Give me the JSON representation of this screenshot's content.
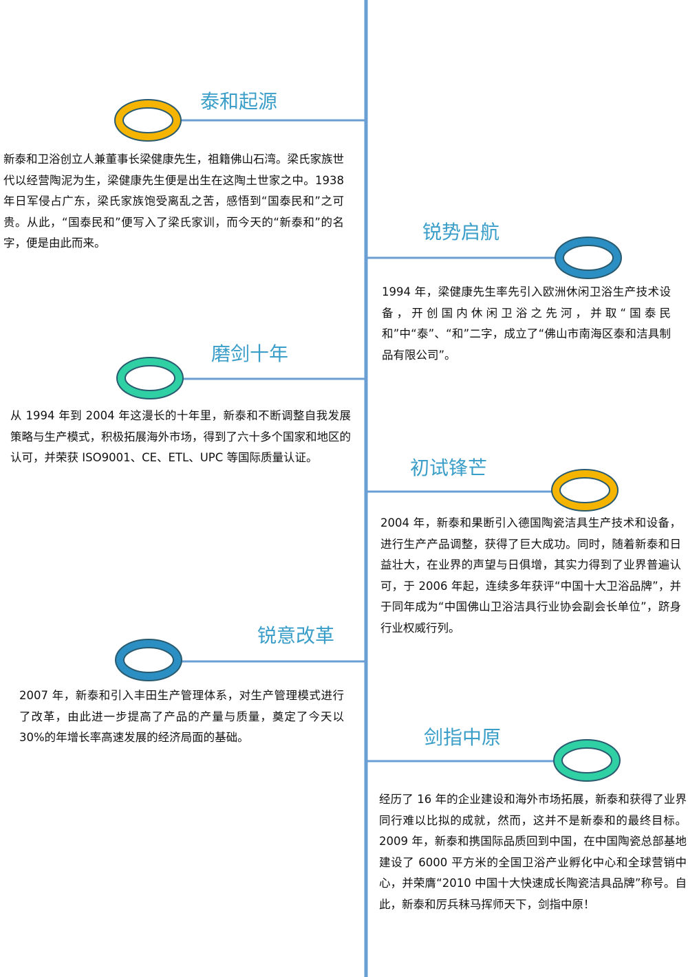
{
  "entries": [
    {
      "title": "泰和起源",
      "text": "新泰和卫浴创立人兼董事长梁健康先生，祖籍佛山石湾。梁氏家族世代以经营陶泥为生，梁健康先生便是出生在这陶土世家之中。1938 年日军侵占广东，梁氏家族饱受离乱之苦，感悟到“国泰民和”之可贵。从此，“国泰民和”便写入了梁氏家训，而今天的“新泰和”的名字，便是由此而来。"
    },
    {
      "title": "锐势启航",
      "text": "1994 年，梁健康先生率先引入欧洲休闲卫浴生产技术设备，开创国内休闲卫浴之先河，并取“国泰民和”中“泰”、“和”二字，成立了“佛山市南海区泰和洁具制品有限公司”。"
    },
    {
      "title": "磨剑十年",
      "text": "从 1994 年到 2004 年这漫长的十年里，新泰和不断调整自我发展策略与生产模式，积极拓展海外市场，得到了六十多个国家和地区的认可，并荣获 ISO9001、CE、ETL、UPC 等国际质量认证。"
    },
    {
      "title": "初试锋芒",
      "text": "2004 年，新泰和果断引入德国陶瓷洁具生产技术和设备，进行生产产品调整，获得了巨大成功。同时，随着新泰和日益壮大，在业界的声望与日俱增，其实力得到了业界普遍认可，于 2006 年起，连续多年获评“中国十大卫浴品牌”，并于同年成为“中国佛山卫浴洁具行业协会副会长单位”，跻身行业权威行列。"
    },
    {
      "title": "锐意改革",
      "text": "2007 年，新泰和引入丰田生产管理体系，对生产管理模式进行了改革，由此进一步提高了产品的产量与质量，奠定了今天以 30%的年增长率高速发展的经济局面的基础。"
    },
    {
      "title": "剑指中原",
      "text": "经历了 16 年的企业建设和海外市场拓展，新泰和获得了业界同行难以比拟的成就，然而，这并不是新泰和的最终目标。2009 年，新泰和携国际品质回到中国，在中国陶瓷总部基地建设了 6000 平方米的全国卫浴产业孵化中心和全球营销中心，并荣膺“2010 中国十大快速成长陶瓷洁具品牌”称号。自此，新泰和厉兵秣马挥师天下，剑指中原！"
    }
  ]
}
